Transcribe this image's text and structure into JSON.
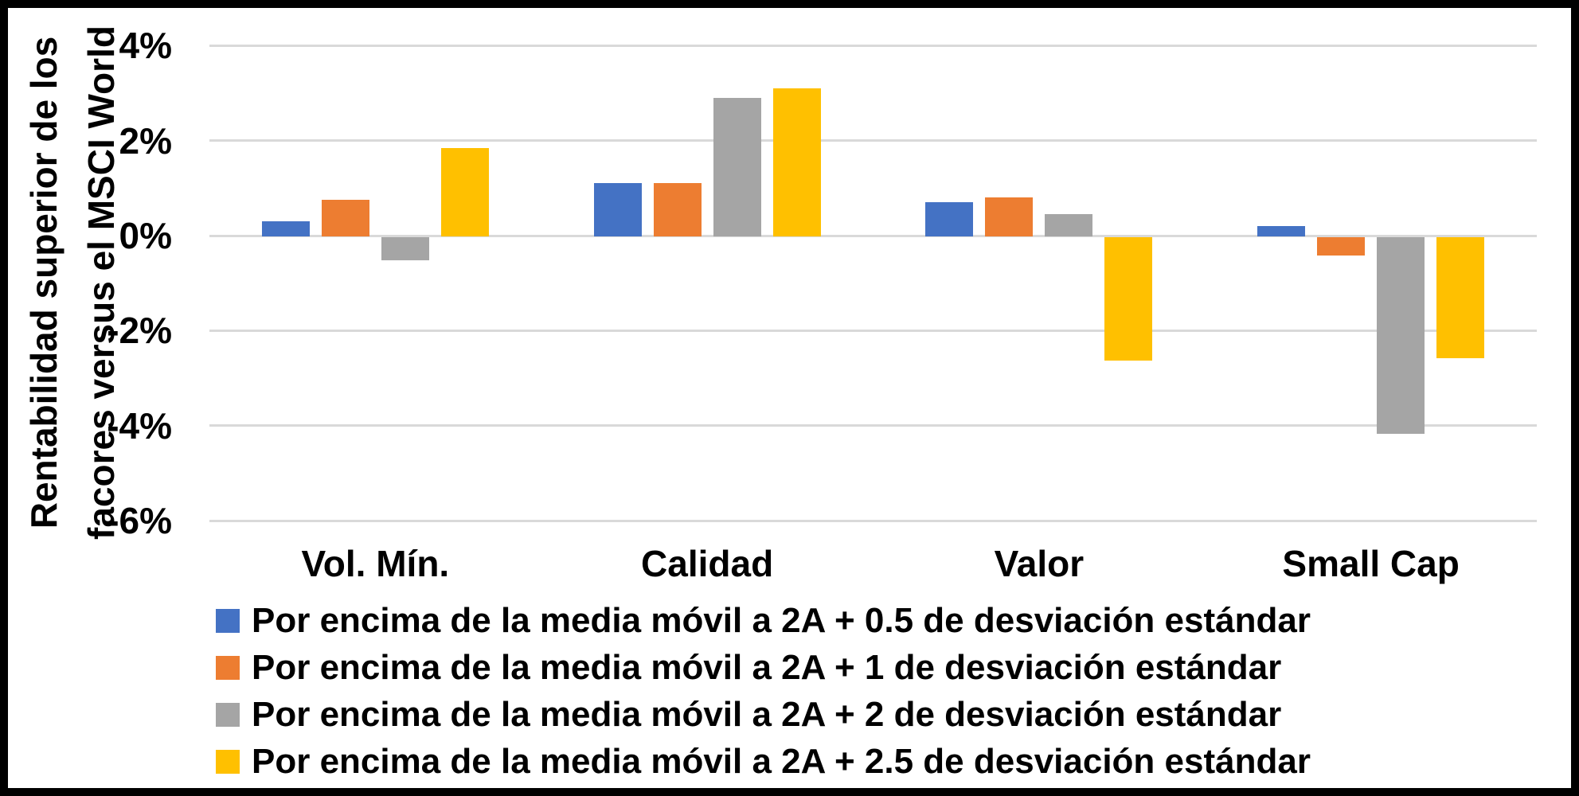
{
  "chart_data": {
    "type": "bar",
    "ylabel_lines": [
      "Rentabilidad superior de los",
      "facores versus el MSCI World"
    ],
    "categories": [
      "Vol. Mín.",
      "Calidad",
      "Valor",
      "Small Cap"
    ],
    "series": [
      {
        "name": "Por encima de la media móvil a 2A + 0.5 de desviación estándar",
        "color": "#4472C4",
        "values": [
          0.3,
          1.1,
          0.7,
          0.2
        ]
      },
      {
        "name": "Por encima de la media móvil a 2A + 1 de desviación estándar",
        "color": "#ED7D31",
        "values": [
          0.75,
          1.1,
          0.8,
          -0.4
        ]
      },
      {
        "name": "Por encima de la media móvil a 2A + 2 de desviación estándar",
        "color": "#A5A5A5",
        "values": [
          -0.5,
          2.9,
          0.45,
          -4.15
        ]
      },
      {
        "name": "Por encima de la media móvil a 2A + 2.5 de desviación estándar",
        "color": "#FFC000",
        "values": [
          1.85,
          3.1,
          -2.6,
          -2.55
        ]
      }
    ],
    "y_axis": {
      "tick_labels": [
        "4%",
        "2%",
        "0%",
        "-2%",
        "-4%",
        "-6%"
      ],
      "tick_values": [
        4,
        2,
        0,
        -2,
        -4,
        -6
      ],
      "min": -6,
      "max": 4,
      "unit": "%"
    },
    "grid": true,
    "legend_position": "bottom-left",
    "colors": {
      "gridline": "#D9D9D9",
      "text": "#000000",
      "background": "#FFFFFF",
      "frame": "#000000"
    }
  }
}
